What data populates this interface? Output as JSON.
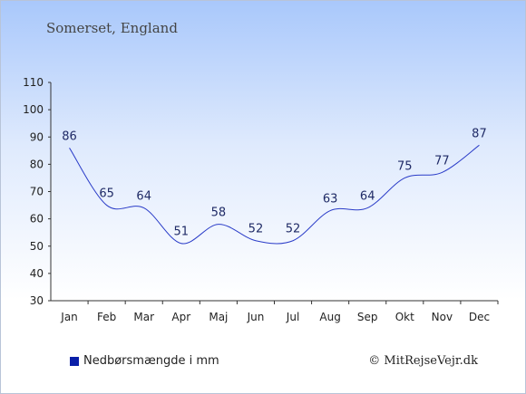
{
  "chart_data": {
    "type": "line",
    "title": "",
    "subtitle": "Somerset, England",
    "categories": [
      "Jan",
      "Feb",
      "Mar",
      "Apr",
      "Maj",
      "Jun",
      "Jul",
      "Aug",
      "Sep",
      "Okt",
      "Nov",
      "Dec"
    ],
    "series": [
      {
        "name": "Nedbørsmængde i mm",
        "values": [
          86,
          65,
          64,
          51,
          58,
          52,
          52,
          63,
          64,
          75,
          77,
          87
        ],
        "color": "#2a3cc8"
      }
    ],
    "ylim": [
      30,
      110
    ],
    "yticks": [
      30,
      40,
      50,
      60,
      70,
      80,
      90,
      100,
      110
    ],
    "xlabel": "",
    "ylabel": "",
    "grid": false,
    "legend_position": "bottom-left",
    "legend_swatch_color": "#0a1fa8"
  },
  "credit": "© MitRejseVejr.dk"
}
